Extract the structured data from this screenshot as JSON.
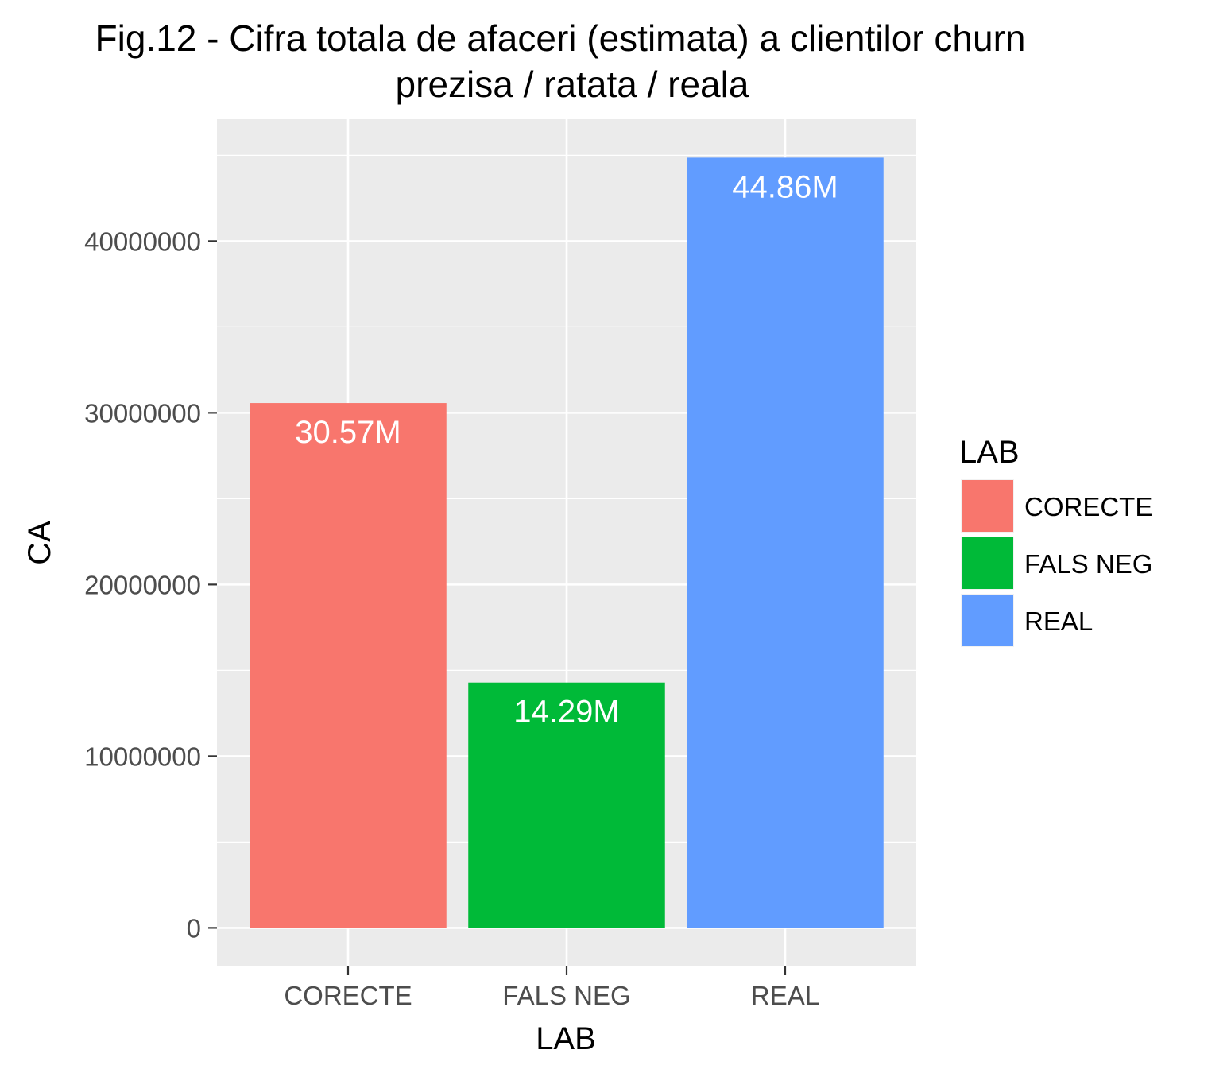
{
  "chart_data": {
    "type": "bar",
    "title": "Fig.12 - Cifra totala de afaceri (estimata) a clientilor churn",
    "subtitle": "prezisa / ratata / reala",
    "xlabel": "LAB",
    "ylabel": "CA",
    "categories": [
      "CORECTE",
      "FALS NEG",
      "REAL"
    ],
    "values": [
      30570000,
      14290000,
      44860000
    ],
    "data_labels": [
      "30.57M",
      "14.29M",
      "44.86M"
    ],
    "colors": [
      "#F8766D",
      "#00BA38",
      "#619CFF"
    ],
    "ylim": [
      -2250000,
      47100000
    ],
    "y_ticks": [
      0,
      10000000,
      20000000,
      30000000,
      40000000
    ],
    "y_tick_labels": [
      "0",
      "10000000",
      "20000000",
      "30000000",
      "40000000"
    ],
    "grid": true,
    "legend": {
      "title": "LAB",
      "position": "right",
      "entries": [
        "CORECTE",
        "FALS NEG",
        "REAL"
      ]
    }
  }
}
